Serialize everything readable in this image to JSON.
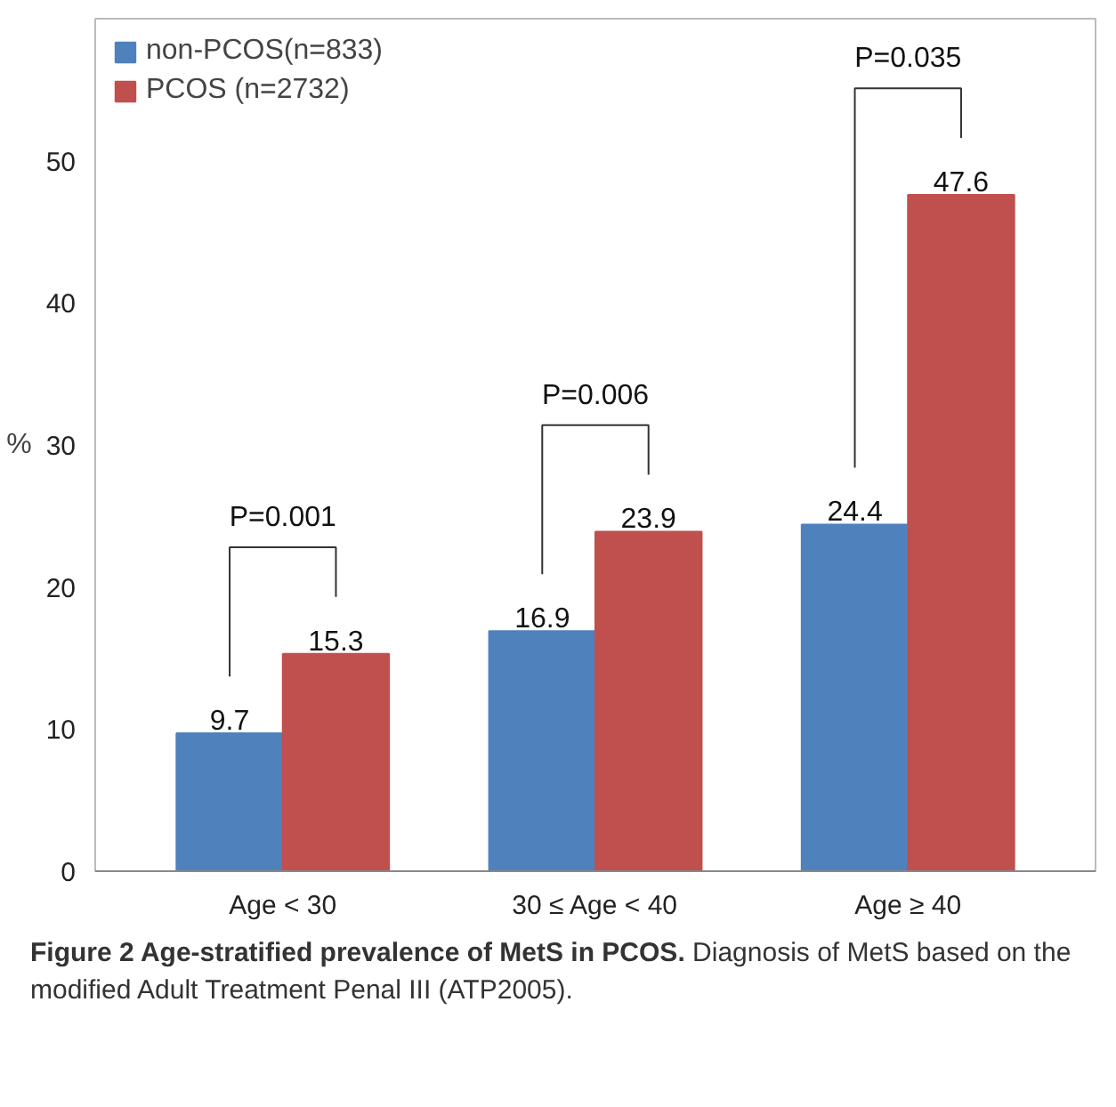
{
  "chart_data": {
    "type": "bar",
    "ylabel": "%",
    "categories": [
      "Age < 30",
      "30 ≤ Age < 40",
      "Age ≥ 40"
    ],
    "series": [
      {
        "name": "non-PCOS(n=833)",
        "color": "#4f81bd",
        "values": [
          9.7,
          16.9,
          24.4
        ]
      },
      {
        "name": "PCOS (n=2732)",
        "color": "#c0504d",
        "values": [
          15.3,
          23.9,
          47.6
        ]
      }
    ],
    "ylim": [
      0,
      60
    ],
    "yticks": [
      0,
      10,
      20,
      30,
      40,
      50
    ],
    "grid": false,
    "legend": "top left",
    "data_labels": true,
    "annotations": [
      "P=0.001",
      "P=0.006",
      "P=0.035",
      "Figure 2 Age-stratified prevalence of MetS in PCOS.",
      "Diagnosis of MetS based on the modified Adult Treatment Penal III (ATP2005)."
    ]
  }
}
